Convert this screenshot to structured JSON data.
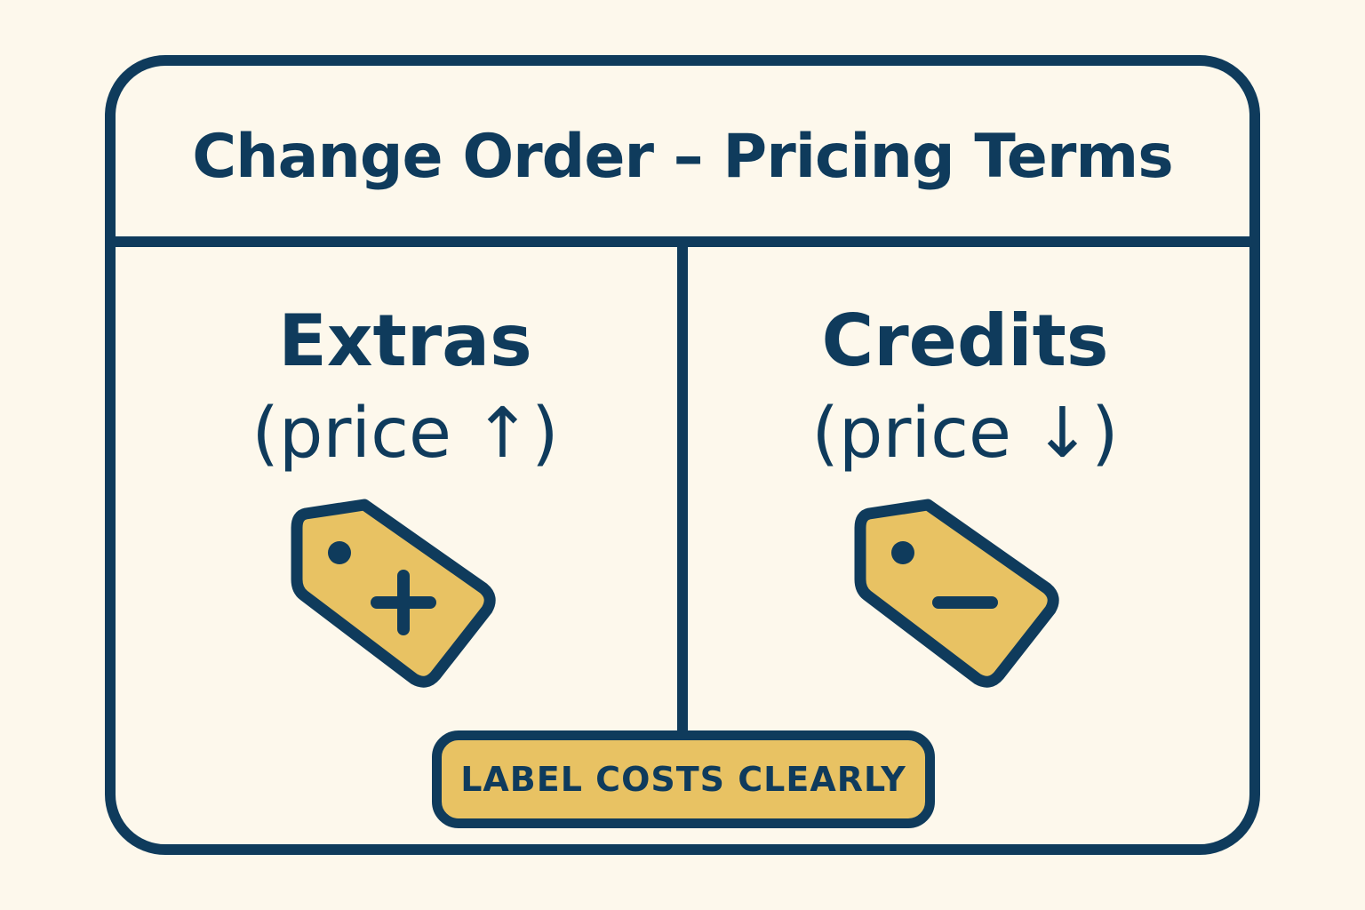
{
  "title": "Change Order – Pricing Terms",
  "columns": [
    {
      "heading": "Extras",
      "sub": "(price ↑)",
      "icon": "price-tag-plus-icon"
    },
    {
      "heading": "Credits",
      "sub": "(price ↓)",
      "icon": "price-tag-minus-icon"
    }
  ],
  "badge": "LABEL COSTS CLEARLY",
  "colors": {
    "background": "#fdf8ec",
    "ink": "#0f3b5c",
    "accent": "#e8c263"
  }
}
